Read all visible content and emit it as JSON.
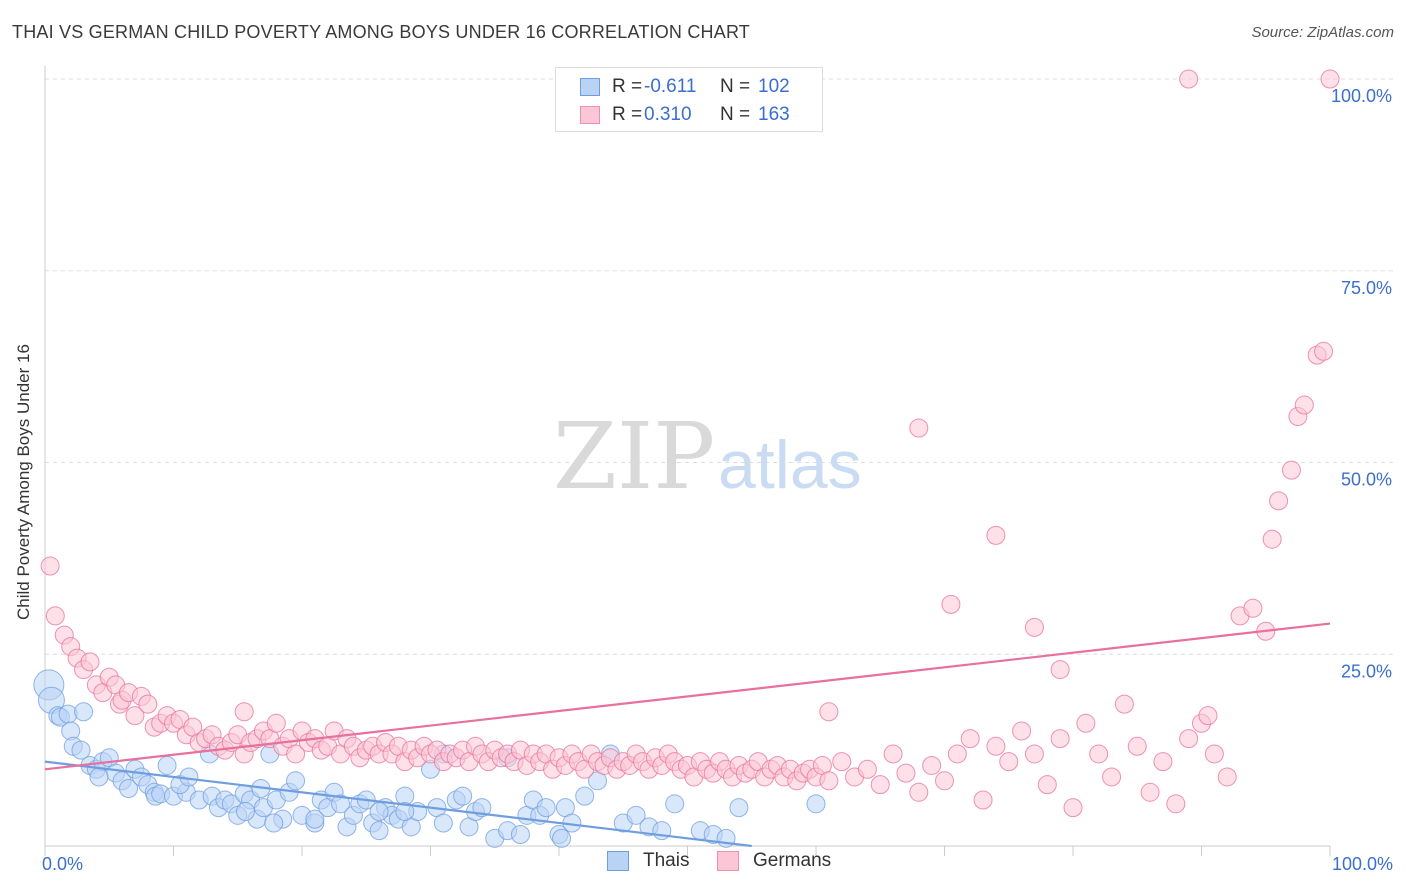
{
  "title": "THAI VS GERMAN CHILD POVERTY AMONG BOYS UNDER 16 CORRELATION CHART",
  "source": "Source: ZipAtlas.com",
  "watermark": {
    "zip": "ZIP",
    "atlas": "atlas"
  },
  "legend": {
    "rows": [
      {
        "name": "Thais",
        "r_label": "R =",
        "r_value": "-0.611",
        "n_label": "N =",
        "n_value": "102",
        "fill": "#b9d3f5",
        "stroke": "#6f9ee0"
      },
      {
        "name": "Germans",
        "r_label": "R =",
        "r_value": "0.310",
        "n_label": "N =",
        "n_value": "163",
        "fill": "#fbc6d6",
        "stroke": "#ee8fb0"
      }
    ]
  },
  "chart_data": {
    "type": "scatter",
    "title": "THAI VS GERMAN CHILD POVERTY AMONG BOYS UNDER 16 CORRELATION CHART",
    "xlabel": "",
    "ylabel": "Child Poverty Among Boys Under 16",
    "xlim": [
      0,
      100
    ],
    "ylim": [
      0,
      100
    ],
    "x_tick_labels": [
      "0.0%",
      "100.0%"
    ],
    "y_ticks": [
      25,
      50,
      75,
      100
    ],
    "y_tick_labels": [
      "25.0%",
      "50.0%",
      "75.0%",
      "100.0%"
    ],
    "grid": true,
    "legend_position": "top-center",
    "series": [
      {
        "name": "Thais",
        "color": "#6f9ee0",
        "fill": "#b9d3f5",
        "trend": {
          "x": [
            0,
            55
          ],
          "y": [
            11,
            0
          ]
        },
        "points": [
          [
            0.3,
            21
          ],
          [
            0.5,
            19
          ],
          [
            1,
            17
          ],
          [
            1.2,
            16.8
          ],
          [
            1.8,
            17.2
          ],
          [
            3,
            17.5
          ],
          [
            2,
            15
          ],
          [
            2.2,
            13
          ],
          [
            2.8,
            12.5
          ],
          [
            3.5,
            10.5
          ],
          [
            4,
            10
          ],
          [
            4.5,
            11
          ],
          [
            5,
            11.5
          ],
          [
            5.5,
            9.5
          ],
          [
            4.2,
            9
          ],
          [
            6,
            8.5
          ],
          [
            6.5,
            7.5
          ],
          [
            7,
            10
          ],
          [
            7.5,
            9
          ],
          [
            8,
            8
          ],
          [
            8.5,
            7
          ],
          [
            8.6,
            6.5
          ],
          [
            9,
            6.8
          ],
          [
            9.5,
            10.5
          ],
          [
            10,
            6.5
          ],
          [
            11,
            7
          ],
          [
            10.5,
            8
          ],
          [
            11.2,
            9
          ],
          [
            12,
            6
          ],
          [
            13,
            6.5
          ],
          [
            13.5,
            5
          ],
          [
            14,
            6
          ],
          [
            14.5,
            5.5
          ],
          [
            15,
            4
          ],
          [
            15.5,
            6.8
          ],
          [
            16,
            6
          ],
          [
            16.5,
            3.5
          ],
          [
            12.8,
            12
          ],
          [
            15.6,
            4.5
          ],
          [
            16.8,
            7.5
          ],
          [
            17,
            5
          ],
          [
            17.5,
            12
          ],
          [
            18,
            6
          ],
          [
            19,
            7
          ],
          [
            19.5,
            8.5
          ],
          [
            20,
            4
          ],
          [
            21,
            3
          ],
          [
            21.5,
            6
          ],
          [
            22,
            5
          ],
          [
            22.5,
            7
          ],
          [
            23,
            5.5
          ],
          [
            23.5,
            2.5
          ],
          [
            24,
            4
          ],
          [
            24.5,
            5.5
          ],
          [
            25,
            6
          ],
          [
            25.5,
            3
          ],
          [
            26,
            2
          ],
          [
            26.5,
            5
          ],
          [
            27,
            4
          ],
          [
            27.5,
            3.5
          ],
          [
            28,
            6.5
          ],
          [
            28.5,
            2.5
          ],
          [
            29,
            4.5
          ],
          [
            30,
            10
          ],
          [
            30.5,
            5
          ],
          [
            31,
            3
          ],
          [
            32,
            6
          ],
          [
            33,
            2.5
          ],
          [
            33.5,
            4.5
          ],
          [
            34,
            5
          ],
          [
            35,
            1
          ],
          [
            36,
            2
          ],
          [
            37,
            1.5
          ],
          [
            37.5,
            4
          ],
          [
            38,
            6
          ],
          [
            38.5,
            4
          ],
          [
            39,
            5
          ],
          [
            40,
            1.5
          ],
          [
            40.5,
            5
          ],
          [
            41,
            3
          ],
          [
            42,
            6.5
          ],
          [
            43,
            8.5
          ],
          [
            44,
            12
          ],
          [
            45,
            3
          ],
          [
            46,
            4
          ],
          [
            47,
            2.5
          ],
          [
            48,
            2
          ],
          [
            40.2,
            1
          ],
          [
            31,
            12
          ],
          [
            26,
            4.5
          ],
          [
            18.5,
            3.5
          ],
          [
            17.8,
            3
          ],
          [
            21,
            3.5
          ],
          [
            32.5,
            6.5
          ],
          [
            28,
            4.5
          ],
          [
            36,
            11.5
          ],
          [
            49,
            5.5
          ],
          [
            51,
            2
          ],
          [
            52,
            1.5
          ],
          [
            53,
            1
          ],
          [
            54,
            5
          ],
          [
            60,
            5.5
          ]
        ]
      },
      {
        "name": "Germans",
        "color": "#e8709c",
        "fill": "#fbc6d6",
        "trend": {
          "x": [
            0,
            100
          ],
          "y": [
            10,
            29
          ]
        },
        "points": [
          [
            0.4,
            36.5
          ],
          [
            0.8,
            30
          ],
          [
            1.5,
            27.5
          ],
          [
            2,
            26
          ],
          [
            2.5,
            24.5
          ],
          [
            3,
            23
          ],
          [
            3.5,
            24
          ],
          [
            4,
            21
          ],
          [
            4.5,
            20
          ],
          [
            5,
            22
          ],
          [
            5.5,
            21
          ],
          [
            5.8,
            18.5
          ],
          [
            6,
            19
          ],
          [
            6.5,
            20
          ],
          [
            7,
            17
          ],
          [
            7.5,
            19.5
          ],
          [
            8,
            18.5
          ],
          [
            8.5,
            15.5
          ],
          [
            9,
            16
          ],
          [
            9.5,
            17
          ],
          [
            10,
            16
          ],
          [
            10.5,
            16.5
          ],
          [
            11,
            14.5
          ],
          [
            11.5,
            15.5
          ],
          [
            12,
            13.5
          ],
          [
            12.5,
            14
          ],
          [
            13,
            14.5
          ],
          [
            13.5,
            13
          ],
          [
            14,
            12.5
          ],
          [
            14.5,
            13.5
          ],
          [
            15,
            14.5
          ],
          [
            15.5,
            12
          ],
          [
            16,
            13.5
          ],
          [
            16.5,
            14
          ],
          [
            17,
            15
          ],
          [
            17.5,
            14
          ],
          [
            18,
            16
          ],
          [
            18.5,
            13
          ],
          [
            19,
            14
          ],
          [
            19.5,
            12
          ],
          [
            20,
            15
          ],
          [
            20.5,
            13.5
          ],
          [
            21,
            14
          ],
          [
            21.5,
            12.5
          ],
          [
            22,
            13
          ],
          [
            22.5,
            15
          ],
          [
            23,
            12
          ],
          [
            23.5,
            14
          ],
          [
            24,
            13
          ],
          [
            24.5,
            11.5
          ],
          [
            25,
            12.5
          ],
          [
            25.5,
            13
          ],
          [
            26,
            12
          ],
          [
            26.5,
            13.5
          ],
          [
            27,
            12
          ],
          [
            27.5,
            13
          ],
          [
            28,
            11
          ],
          [
            28.5,
            12.5
          ],
          [
            29,
            11.5
          ],
          [
            29.5,
            13
          ],
          [
            30,
            12
          ],
          [
            30.5,
            12.5
          ],
          [
            31,
            11
          ],
          [
            31.5,
            12
          ],
          [
            32,
            11.5
          ],
          [
            32.5,
            12.5
          ],
          [
            33,
            11
          ],
          [
            33.5,
            13
          ],
          [
            34,
            12
          ],
          [
            34.5,
            11
          ],
          [
            35,
            12.5
          ],
          [
            35.5,
            11.5
          ],
          [
            36,
            12
          ],
          [
            36.5,
            11
          ],
          [
            37,
            12.5
          ],
          [
            37.5,
            10.5
          ],
          [
            38,
            12
          ],
          [
            38.5,
            11
          ],
          [
            39,
            12
          ],
          [
            39.5,
            10
          ],
          [
            40,
            11.5
          ],
          [
            40.5,
            10.5
          ],
          [
            41,
            12
          ],
          [
            41.5,
            11
          ],
          [
            42,
            10
          ],
          [
            42.5,
            12
          ],
          [
            43,
            11
          ],
          [
            43.5,
            10.5
          ],
          [
            44,
            11.5
          ],
          [
            44.5,
            10
          ],
          [
            45,
            11
          ],
          [
            45.5,
            10.5
          ],
          [
            46,
            12
          ],
          [
            46.5,
            11
          ],
          [
            47,
            10
          ],
          [
            47.5,
            11.5
          ],
          [
            48,
            10.5
          ],
          [
            48.5,
            12
          ],
          [
            49,
            11
          ],
          [
            49.5,
            10
          ],
          [
            50,
            10.5
          ],
          [
            50.5,
            9
          ],
          [
            51,
            11
          ],
          [
            51.5,
            10
          ],
          [
            52,
            9.5
          ],
          [
            52.5,
            11
          ],
          [
            53,
            10
          ],
          [
            53.5,
            9
          ],
          [
            54,
            10.5
          ],
          [
            54.5,
            9.5
          ],
          [
            55,
            10
          ],
          [
            55.5,
            11
          ],
          [
            56,
            9
          ],
          [
            56.5,
            10
          ],
          [
            57,
            10.5
          ],
          [
            57.5,
            9
          ],
          [
            58,
            10
          ],
          [
            58.5,
            8.5
          ],
          [
            59,
            9.5
          ],
          [
            59.5,
            10
          ],
          [
            60,
            9
          ],
          [
            60.5,
            10.5
          ],
          [
            61,
            8.5
          ],
          [
            62,
            11
          ],
          [
            63,
            9
          ],
          [
            64,
            10
          ],
          [
            65,
            8
          ],
          [
            66,
            12
          ],
          [
            67,
            9.5
          ],
          [
            68,
            7
          ],
          [
            69,
            10.5
          ],
          [
            70,
            8.5
          ],
          [
            71,
            12
          ],
          [
            72,
            14
          ],
          [
            73,
            6
          ],
          [
            74,
            13
          ],
          [
            75,
            11
          ],
          [
            76,
            15
          ],
          [
            77,
            12
          ],
          [
            78,
            8
          ],
          [
            79,
            14
          ],
          [
            80,
            5
          ],
          [
            81,
            16
          ],
          [
            82,
            12
          ],
          [
            83,
            9
          ],
          [
            84,
            18.5
          ],
          [
            85,
            13
          ],
          [
            86,
            7
          ],
          [
            87,
            11
          ],
          [
            88,
            5.5
          ],
          [
            89,
            14
          ],
          [
            90,
            16
          ],
          [
            91,
            12
          ],
          [
            92,
            9
          ],
          [
            93,
            30
          ],
          [
            94,
            31
          ],
          [
            95,
            28
          ],
          [
            95.5,
            40
          ],
          [
            96,
            45
          ],
          [
            97,
            49
          ],
          [
            97.5,
            56
          ],
          [
            98,
            57.5
          ],
          [
            99,
            64
          ],
          [
            99.5,
            64.5
          ],
          [
            100,
            100
          ],
          [
            89,
            100
          ],
          [
            68,
            54.5
          ],
          [
            70.5,
            31.5
          ],
          [
            74,
            40.5
          ],
          [
            77,
            28.5
          ],
          [
            79,
            23
          ],
          [
            61,
            17.5
          ],
          [
            90.5,
            17
          ],
          [
            15.5,
            17.5
          ]
        ]
      }
    ]
  }
}
